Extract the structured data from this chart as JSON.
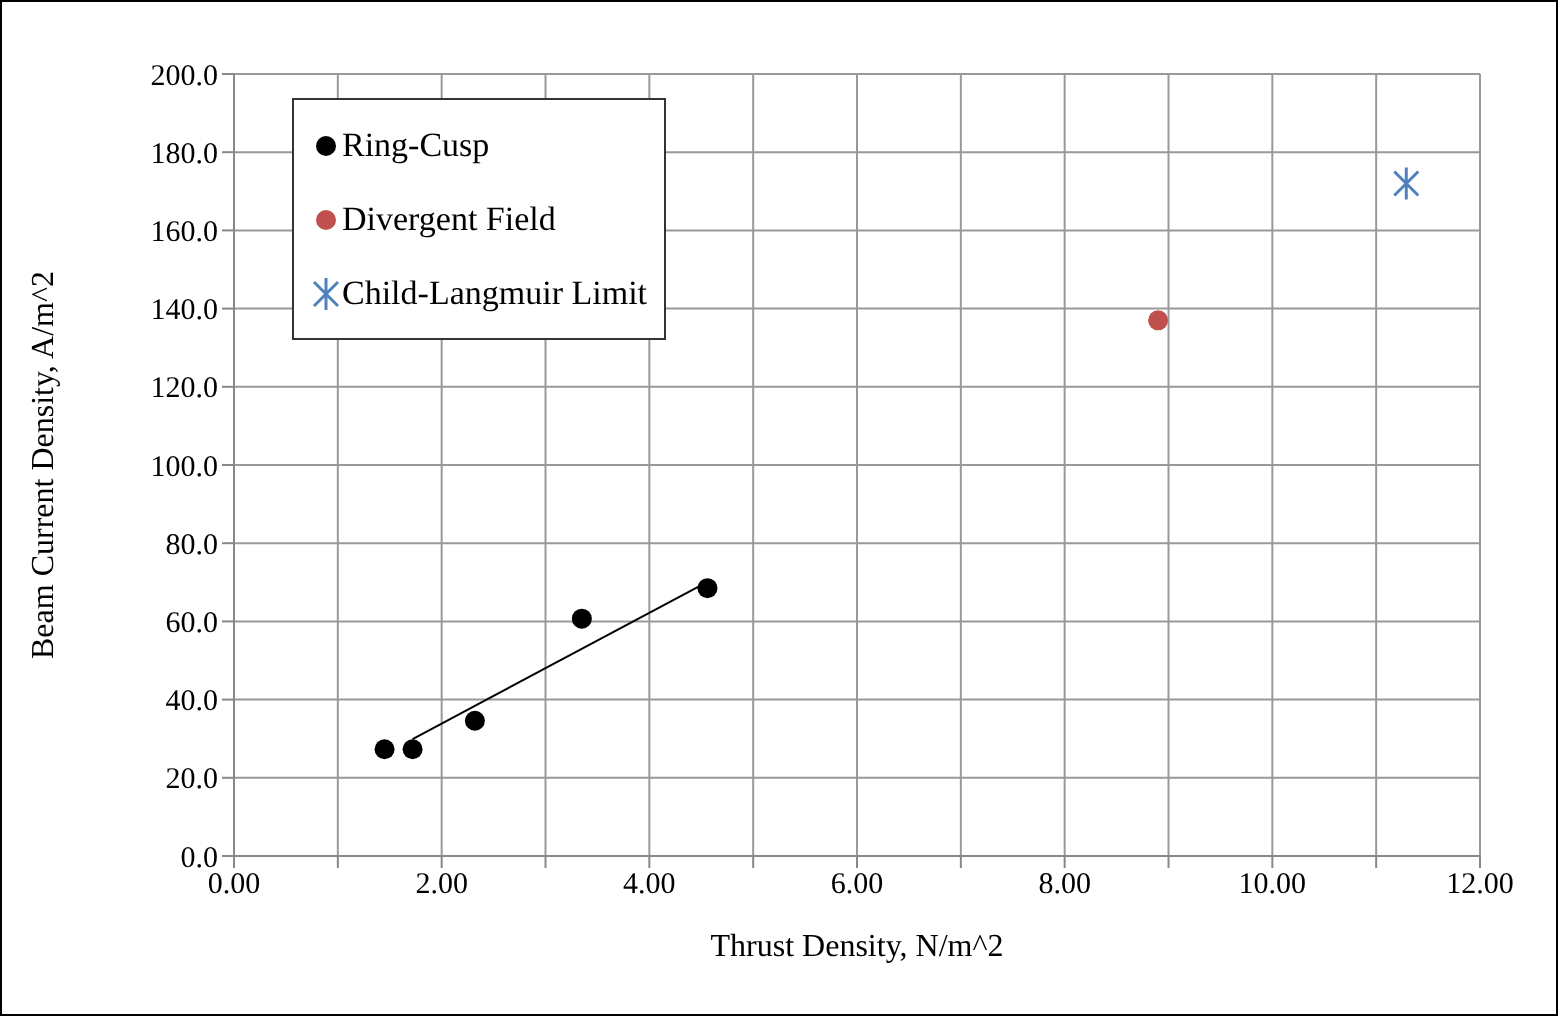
{
  "chart_data": {
    "type": "scatter",
    "xlabel": "Thrust Density, N/m^2",
    "ylabel": "Beam Current Density, A/m^2",
    "xlim": [
      0,
      12
    ],
    "xticks": [
      {
        "value": 0,
        "label": "0.00"
      },
      {
        "value": 1,
        "label": null
      },
      {
        "value": 2,
        "label": "2.00"
      },
      {
        "value": 3,
        "label": null
      },
      {
        "value": 4,
        "label": "4.00"
      },
      {
        "value": 5,
        "label": null
      },
      {
        "value": 6,
        "label": "6.00"
      },
      {
        "value": 7,
        "label": null
      },
      {
        "value": 8,
        "label": "8.00"
      },
      {
        "value": 9,
        "label": null
      },
      {
        "value": 10,
        "label": "10.00"
      },
      {
        "value": 11,
        "label": null
      },
      {
        "value": 12,
        "label": "12.00"
      }
    ],
    "ylim": [
      0,
      200
    ],
    "yticks": [
      {
        "value": 0,
        "label": "0.0"
      },
      {
        "value": 20,
        "label": "20.0"
      },
      {
        "value": 40,
        "label": "40.0"
      },
      {
        "value": 60,
        "label": "60.0"
      },
      {
        "value": 80,
        "label": "80.0"
      },
      {
        "value": 100,
        "label": "100.0"
      },
      {
        "value": 120,
        "label": "120.0"
      },
      {
        "value": 140,
        "label": "140.0"
      },
      {
        "value": 160,
        "label": "160.0"
      },
      {
        "value": 180,
        "label": "180.0"
      },
      {
        "value": 200,
        "label": "200.0"
      }
    ],
    "grid": true,
    "legend": "top left",
    "series": [
      {
        "name": "Ring-Cusp",
        "color": "#000000",
        "marker": "circle",
        "x": [
          1.45,
          1.72,
          2.32,
          3.35,
          4.56
        ],
        "values": [
          27.3,
          27.3,
          34.6,
          60.7,
          68.5
        ]
      },
      {
        "name": "Divergent Field",
        "color": "#c0504d",
        "marker": "circle",
        "x": [
          8.9
        ],
        "values": [
          137.0
        ]
      },
      {
        "name": "Child-Langmuir Limit",
        "color": "#4f81bd",
        "marker": "cross",
        "x": [
          11.29
        ],
        "values": [
          172.0
        ]
      },
      {
        "type": "line",
        "color": "#000000",
        "marker": "none",
        "x": [
          1.72,
          4.56
        ],
        "values": [
          29.9,
          70.1
        ]
      }
    ]
  }
}
